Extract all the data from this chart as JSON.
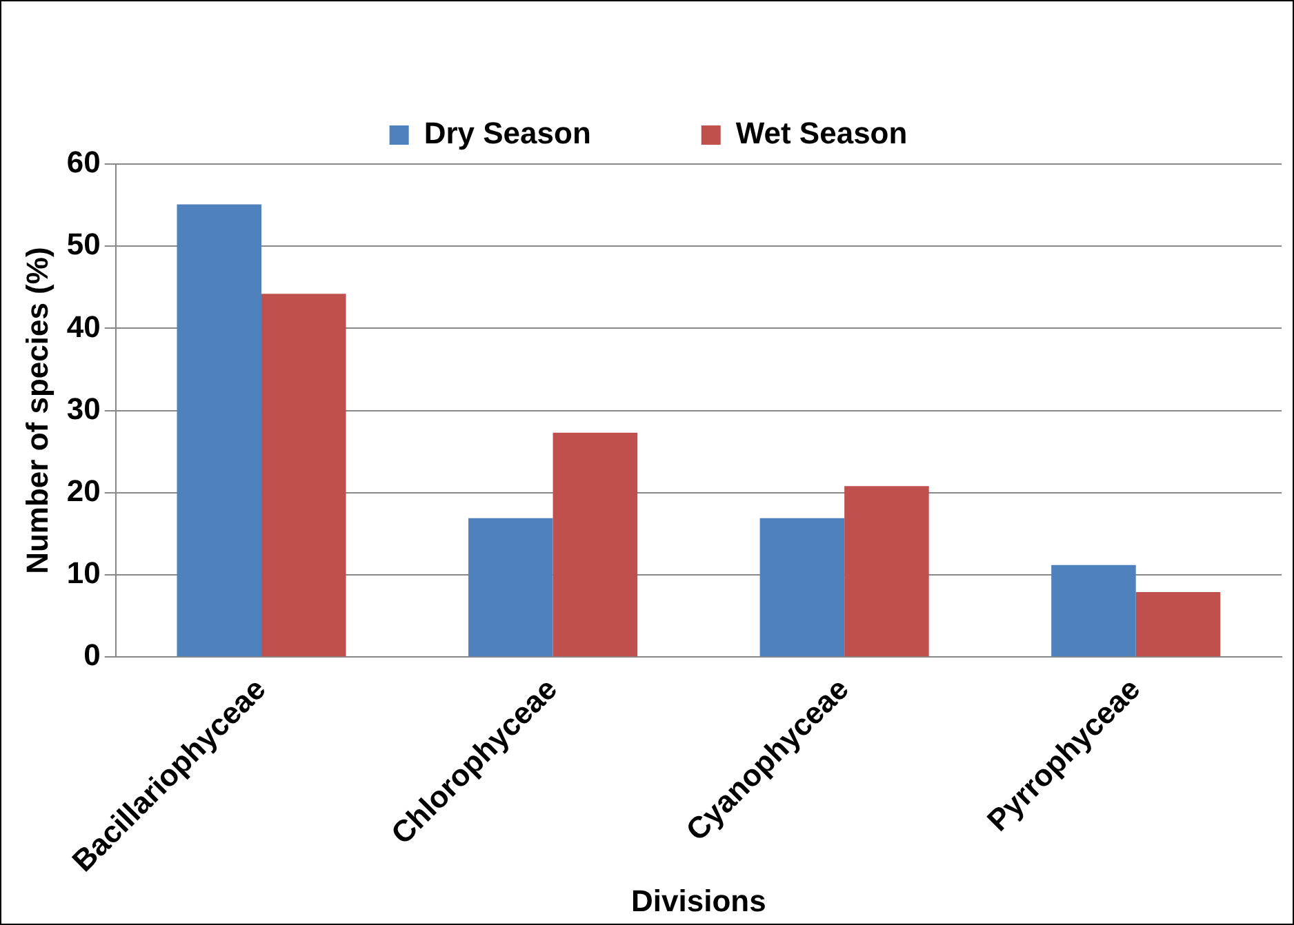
{
  "chart_data": {
    "type": "bar",
    "xlabel": "Divisions",
    "ylabel": "Number of species (%)",
    "categories": [
      "Bacillariophyceae",
      "Chlorophyceae",
      "Cyanophyceae",
      "Pyrrophyceae"
    ],
    "series": [
      {
        "name": "Dry Season",
        "color": "#4f81bd",
        "values": [
          55.1,
          16.9,
          16.9,
          11.2
        ]
      },
      {
        "name": "Wet Season",
        "color": "#c0504d",
        "values": [
          44.2,
          27.3,
          20.8,
          7.9
        ]
      }
    ],
    "ylim": [
      0,
      60
    ],
    "yticks": [
      0,
      10,
      20,
      30,
      40,
      50,
      60
    ],
    "grid": "y",
    "legend": "top"
  }
}
